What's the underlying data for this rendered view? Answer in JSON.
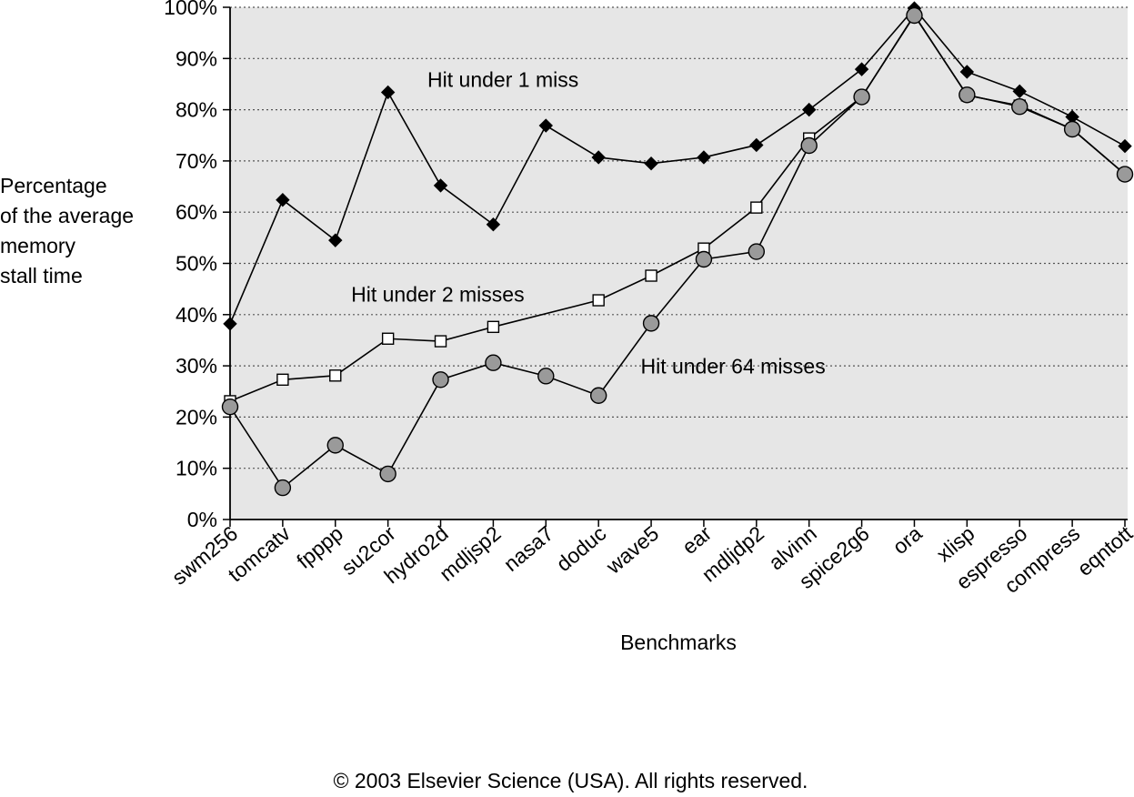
{
  "chart_data": {
    "type": "line",
    "xlabel": "Benchmarks",
    "ylabel_lines": [
      "Percentage",
      "of the average",
      "memory",
      "stall time"
    ],
    "ylim": [
      0,
      100
    ],
    "yticks": [
      "0%",
      "10%",
      "20%",
      "30%",
      "40%",
      "50%",
      "60%",
      "70%",
      "80%",
      "90%",
      "100%"
    ],
    "grid": true,
    "categories": [
      "swm256",
      "tomcatv",
      "fpppp",
      "su2cor",
      "hydro2d",
      "mdljsp2",
      "nasa7",
      "doduc",
      "wave5",
      "ear",
      "mdljdp2",
      "alvinn",
      "spice2g6",
      "ora",
      "xlisp",
      "espresso",
      "compress",
      "eqntott"
    ],
    "series": [
      {
        "name": "Hit under 1 miss",
        "marker": "diamond-filled",
        "values": [
          38.2,
          62.4,
          54.5,
          83.4,
          65.2,
          57.6,
          76.9,
          70.7,
          69.5,
          70.7,
          73.1,
          80.0,
          87.9,
          99.8,
          87.4,
          83.6,
          78.6,
          72.9
        ]
      },
      {
        "name": "Hit under 2 misses",
        "marker": "square-open",
        "values": [
          23.1,
          27.3,
          28.1,
          35.3,
          34.8,
          37.6,
          null,
          42.8,
          47.6,
          52.9,
          60.9,
          74.4,
          82.5,
          98.5,
          82.8,
          80.8,
          76.2,
          67.4
        ]
      },
      {
        "name": "Hit under 64 misses",
        "marker": "circle-gray",
        "values": [
          22.0,
          6.2,
          14.5,
          8.9,
          27.3,
          30.6,
          28.0,
          24.2,
          38.3,
          50.8,
          52.3,
          73.0,
          82.5,
          98.4,
          82.9,
          80.6,
          76.2,
          67.4
        ]
      }
    ],
    "annotations": [
      {
        "series": "Hit under 1 miss",
        "text": "Hit under 1 miss"
      },
      {
        "series": "Hit under 2 misses",
        "text": "Hit under 2 misses"
      },
      {
        "series": "Hit under 64 misses",
        "text": "Hit under 64 misses"
      }
    ],
    "colors": {
      "plot_background": "#e6e6e6",
      "line": "#000000",
      "circle_fill": "#9a9a9a"
    }
  },
  "footer": {
    "copyright": "© 2003 Elsevier Science (USA). All rights reserved."
  }
}
